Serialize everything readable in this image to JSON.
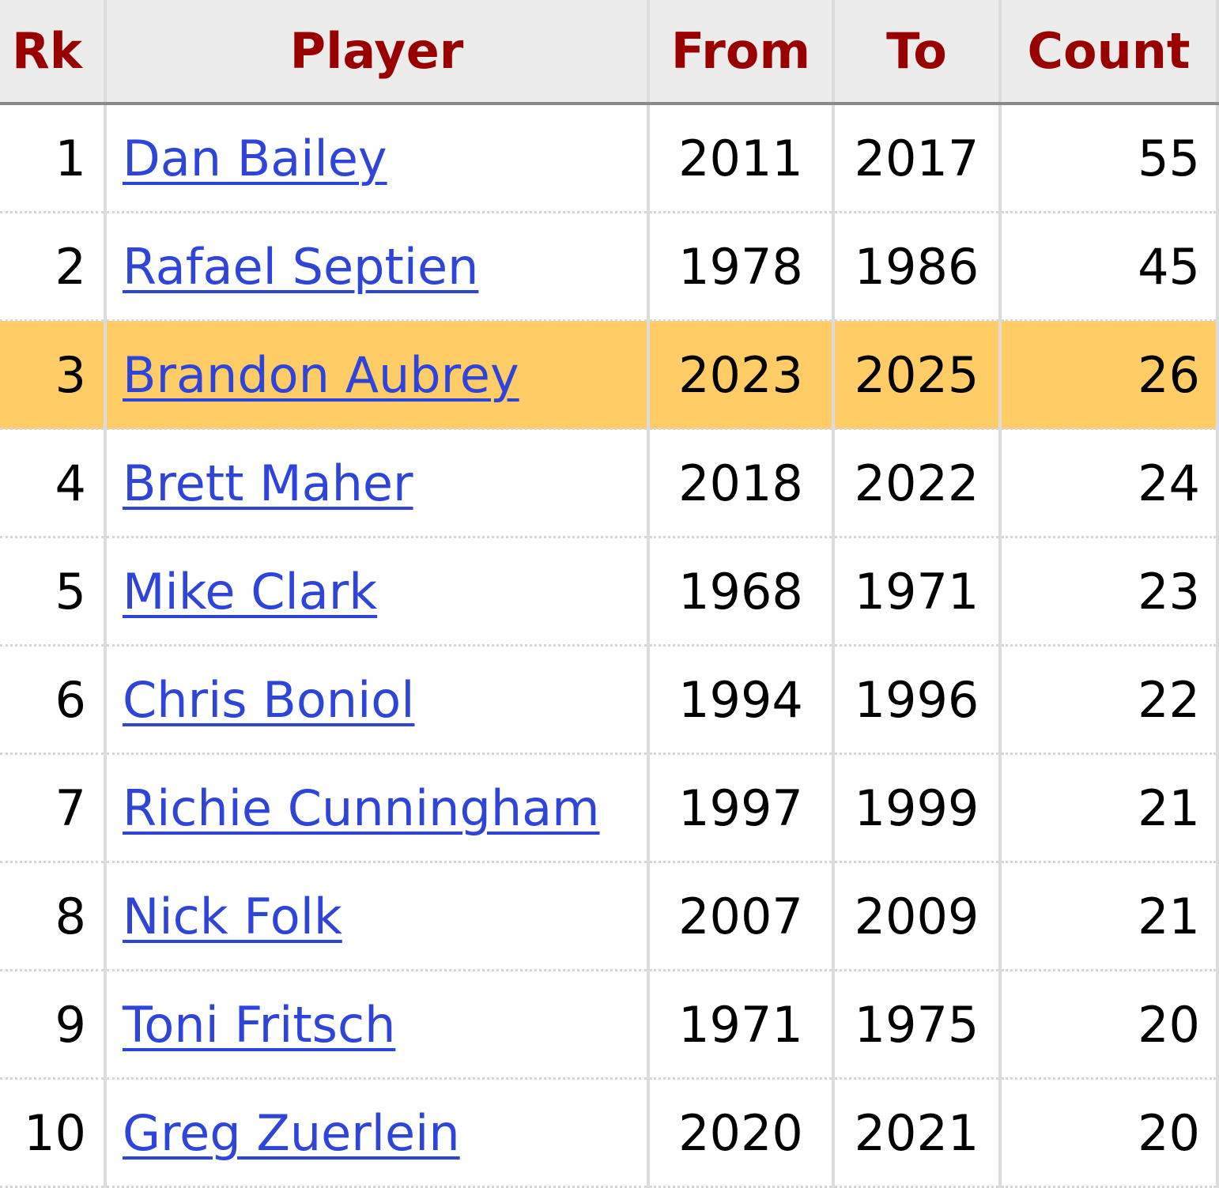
{
  "table": {
    "columns": [
      "Rk",
      "Player",
      "From",
      "To",
      "Count"
    ],
    "rows": [
      [
        1,
        "Dan Bailey",
        2011,
        2017,
        55
      ],
      [
        2,
        "Rafael Septien",
        1978,
        1986,
        45
      ],
      [
        3,
        "Brandon Aubrey",
        2023,
        2025,
        26
      ],
      [
        4,
        "Brett Maher",
        2018,
        2022,
        24
      ],
      [
        5,
        "Mike Clark",
        1968,
        1971,
        23
      ],
      [
        6,
        "Chris Boniol",
        1994,
        1996,
        22
      ],
      [
        7,
        "Richie Cunningham",
        1997,
        1999,
        21
      ],
      [
        8,
        "Nick Folk",
        2007,
        2009,
        21
      ],
      [
        9,
        "Toni Fritsch",
        1971,
        1975,
        20
      ],
      [
        10,
        "Greg Zuerlein",
        2020,
        2021,
        20
      ]
    ],
    "highlighted_row": 2
  }
}
